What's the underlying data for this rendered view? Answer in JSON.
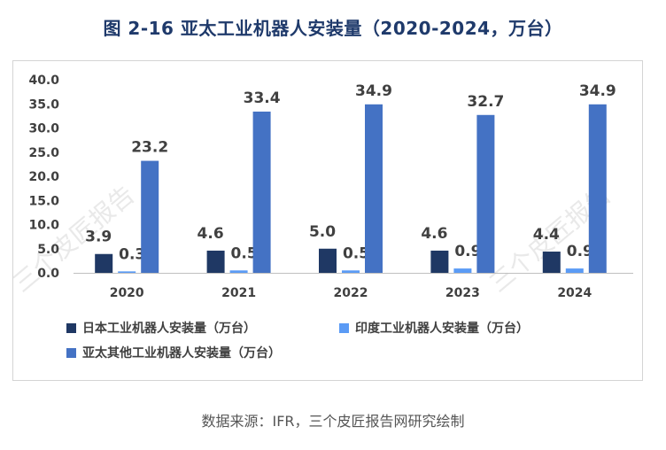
{
  "title": "图 2-16  亚太工业机器人安装量（2020-2024，万台）",
  "source": "数据来源：IFR，三个皮匠报告网研究绘制",
  "watermark": "三个皮匠报告",
  "colors": {
    "japan": "#1f3864",
    "india": "#5b9bf5",
    "other": "#4472c4",
    "title": "#1f3a6b"
  },
  "chart_data": {
    "type": "bar",
    "title": "亚太工业机器人安装量（2020-2024，万台）",
    "categories": [
      "2020",
      "2021",
      "2022",
      "2023",
      "2024"
    ],
    "series": [
      {
        "name": "日本工业机器人安装量（万台）",
        "values": [
          3.9,
          4.6,
          5.0,
          4.6,
          4.4
        ],
        "labels": [
          "3.9",
          "4.6",
          "5.0",
          "4.6",
          "4.4"
        ]
      },
      {
        "name": "印度工业机器人安装量（万台）",
        "values": [
          0.3,
          0.5,
          0.5,
          0.9,
          0.9
        ],
        "labels": [
          "0.3",
          "0.5",
          "0.5",
          "0.9",
          "0.9"
        ]
      },
      {
        "name": "亚太其他工业机器人安装量（万台）",
        "values": [
          23.2,
          33.4,
          34.9,
          32.7,
          34.9
        ],
        "labels": [
          "23.2",
          "33.4",
          "34.9",
          "32.7",
          "34.9"
        ]
      }
    ],
    "yticks": [
      "40.0",
      "35.0",
      "30.0",
      "25.0",
      "20.0",
      "15.0",
      "10.0",
      "5.0",
      "0.0"
    ],
    "ylim": [
      0,
      40
    ],
    "xlabel": "",
    "ylabel": "",
    "grid": false,
    "legend": "bottom-left"
  }
}
